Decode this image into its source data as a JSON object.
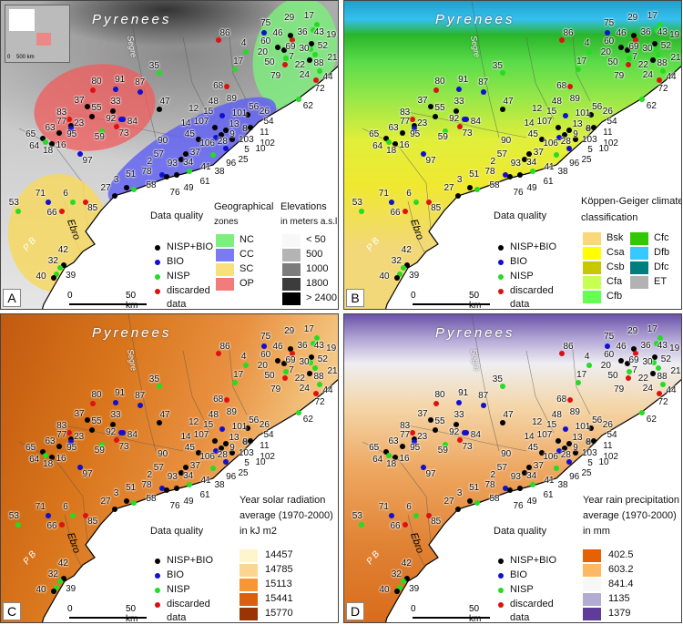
{
  "map_labels": {
    "mountains": "Pyrenees",
    "river_segre": "Segre",
    "river_ebro": "Ebro",
    "pb": "P B",
    "scale_zero": "0",
    "scale_dist": "50 km",
    "inset_scale": "0    500 km"
  },
  "data_quality": {
    "title": "Data quality",
    "items": [
      {
        "label": "NISP+BIO",
        "color": "#000000"
      },
      {
        "label": "BIO",
        "color": "#1010d0"
      },
      {
        "label": "NISP",
        "color": "#22dd22"
      },
      {
        "label": "discarded",
        "label2": "data",
        "color": "#dd1111"
      }
    ]
  },
  "panels": [
    {
      "letter": "A",
      "legend": {
        "title1": "Geographical",
        "title2": "zones",
        "items": [
          {
            "label": "NC",
            "color": "#7cf07c"
          },
          {
            "label": "CC",
            "color": "#7c7cf2"
          },
          {
            "label": "SC",
            "color": "#f8e07a"
          },
          {
            "label": "OP",
            "color": "#f27c7c"
          }
        ],
        "legend2": {
          "title1": "Elevations",
          "title2": "in meters a.s.l",
          "items": [
            {
              "label": "< 50",
              "color": "#f8f8f8"
            },
            {
              "label": "500",
              "color": "#b4b4b4"
            },
            {
              "label": "1000",
              "color": "#7c7c7c"
            },
            {
              "label": "1800",
              "color": "#3c3c3c"
            },
            {
              "label": "> 2400",
              "color": "#000000"
            }
          ]
        }
      }
    },
    {
      "letter": "B",
      "legend": {
        "title1": "Köppen-Geiger climate",
        "title2": "classification",
        "items": [
          {
            "label": "Bsk",
            "color": "#f8d878"
          },
          {
            "label": "Csa",
            "color": "#ffff00"
          },
          {
            "label": "Csb",
            "color": "#c8c800"
          },
          {
            "label": "Cfa",
            "color": "#c8ff50"
          },
          {
            "label": "Cfb",
            "color": "#64ff50"
          },
          {
            "label": "Cfc",
            "color": "#32c800"
          },
          {
            "label": "Dfb",
            "color": "#37c8ff"
          },
          {
            "label": "Dfc",
            "color": "#007d7d"
          },
          {
            "label": "ET",
            "color": "#b2b2b2"
          }
        ]
      }
    },
    {
      "letter": "C",
      "legend": {
        "title0": "Year solar radiation",
        "title1": "average (1970-2000)",
        "title2": "in kJ m2",
        "items": [
          {
            "label": "14457",
            "color": "#fff5cc"
          },
          {
            "label": "14785",
            "color": "#fdd491"
          },
          {
            "label": "15113",
            "color": "#f99532"
          },
          {
            "label": "15441",
            "color": "#d9600e"
          },
          {
            "label": "15770",
            "color": "#993404"
          }
        ]
      }
    },
    {
      "letter": "D",
      "legend": {
        "title0": "Year rain precipitation",
        "title1": "average (1970-2000)",
        "title2": "in mm",
        "items": [
          {
            "label": "402.5",
            "color": "#e66101"
          },
          {
            "label": "603.2",
            "color": "#fdb863"
          },
          {
            "label": "841.4",
            "color": "#f7f7f7"
          },
          {
            "label": "1135",
            "color": "#b2abd2"
          },
          {
            "label": "1379",
            "color": "#5e3c99"
          }
        ]
      }
    }
  ],
  "sites": [
    [
      "75",
      "BIO"
    ],
    [
      "86",
      "discarded"
    ],
    [
      "4",
      "NISP"
    ],
    [
      "17",
      "NISP"
    ],
    [
      "35",
      "NISP"
    ],
    [
      "46",
      "NISP+BIO"
    ],
    [
      "36",
      "discarded"
    ],
    [
      "29",
      null
    ],
    [
      "17",
      "NISP"
    ],
    [
      "43",
      "NISP"
    ],
    [
      "19",
      null
    ],
    [
      "52",
      "NISP+BIO"
    ],
    [
      "60",
      "NISP+BIO"
    ],
    [
      "20",
      "NISP+BIO"
    ],
    [
      "69",
      null
    ],
    [
      "30",
      "NISP"
    ],
    [
      "7",
      "NISP"
    ],
    [
      "50",
      "discarded"
    ],
    [
      "22",
      "NISP+BIO"
    ],
    [
      "21",
      "NISP"
    ],
    [
      "88",
      "NISP"
    ],
    [
      "24",
      null
    ],
    [
      "44",
      null
    ],
    [
      "72",
      "discarded"
    ],
    [
      "79",
      null
    ],
    [
      "62",
      "NISP"
    ],
    [
      "68",
      "discarded"
    ],
    [
      "89",
      null
    ],
    [
      "80",
      "discarded"
    ],
    [
      "91",
      "BIO"
    ],
    [
      "87",
      "BIO"
    ],
    [
      "37",
      "NISP+BIO"
    ],
    [
      "33",
      "NISP+BIO"
    ],
    [
      "55",
      "NISP+BIO"
    ],
    [
      "47",
      "NISP+BIO"
    ],
    [
      "83",
      null
    ],
    [
      "77",
      "discarded"
    ],
    [
      "23",
      "NISP+BIO"
    ],
    [
      "95",
      "BIO"
    ],
    [
      "92",
      "BIO"
    ],
    [
      "84",
      "BIO"
    ],
    [
      "73",
      "discarded"
    ],
    [
      "59",
      "NISP"
    ],
    [
      "63",
      "NISP+BIO"
    ],
    [
      "65",
      "NISP+BIO"
    ],
    [
      "64",
      "NISP"
    ],
    [
      "18",
      "NISP+BIO"
    ],
    [
      "16",
      null
    ],
    [
      "97",
      "BIO"
    ],
    [
      "12",
      null
    ],
    [
      "48",
      null
    ],
    [
      "15",
      null
    ],
    [
      "107",
      "NISP+BIO"
    ],
    [
      "14",
      null
    ],
    [
      "56",
      "NISP+BIO"
    ],
    [
      "26",
      null
    ],
    [
      "101",
      "BIO"
    ],
    [
      "13",
      "NISP+BIO"
    ],
    [
      "8",
      "NISP+BIO"
    ],
    [
      "54",
      "NISP+BIO"
    ],
    [
      "9",
      "NISP+BIO"
    ],
    [
      "11",
      null
    ],
    [
      "102",
      null
    ],
    [
      "103",
      null
    ],
    [
      "45",
      "NISP+BIO"
    ],
    [
      "106",
      "BIO"
    ],
    [
      "28",
      "NISP+BIO"
    ],
    [
      "10",
      null
    ],
    [
      "5",
      "BIO"
    ],
    [
      "25",
      null
    ],
    [
      "90",
      null
    ],
    [
      "57",
      null
    ],
    [
      "37",
      "NISP+BIO"
    ],
    [
      "34",
      "NISP+BIO"
    ],
    [
      "93",
      null
    ],
    [
      "2",
      null
    ],
    [
      "41",
      "NISP"
    ],
    [
      "96",
      "NISP"
    ],
    [
      "38",
      null
    ],
    [
      "78",
      "BIO"
    ],
    [
      "51",
      null
    ],
    [
      "3",
      "NISP+BIO"
    ],
    [
      "58",
      "NISP"
    ],
    [
      "61",
      "NISP+BIO"
    ],
    [
      "49",
      null
    ],
    [
      "76",
      "NISP+BIO"
    ],
    [
      "27",
      "NISP+BIO"
    ],
    [
      "71",
      "BIO"
    ],
    [
      "6",
      "NISP"
    ],
    [
      "85",
      "discarded"
    ],
    [
      "53",
      "NISP"
    ],
    [
      "66",
      "discarded"
    ],
    [
      "42",
      "NISP+BIO"
    ],
    [
      "32",
      "NISP"
    ],
    [
      "39",
      "NISP"
    ],
    [
      "40",
      "NISP+BIO"
    ]
  ]
}
